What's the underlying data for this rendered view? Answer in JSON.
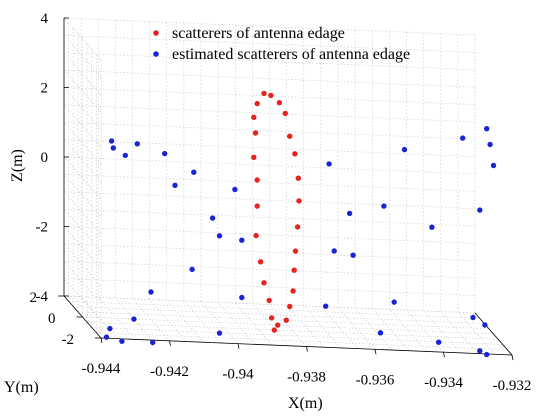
{
  "chart_data": {
    "type": "scatter",
    "projection": "3d",
    "xlabel": "X(m)",
    "ylabel": "Y(m)",
    "zlabel": "Z(m)",
    "xlim": [
      -0.944,
      -0.932
    ],
    "ylim": [
      -2,
      2
    ],
    "zlim": [
      -4,
      4
    ],
    "x_ticks": [
      "-0.944",
      "-0.942",
      "-0.94",
      "-0.938",
      "-0.936",
      "-0.934",
      "-0.932"
    ],
    "y_ticks": [
      "2",
      "0",
      "-2"
    ],
    "z_ticks": [
      "4",
      "2",
      "0",
      "-2",
      "-4"
    ],
    "grid": true,
    "legend_position": "top-center",
    "series": [
      {
        "name": "scatterers of antenna edage",
        "color": "#e8231f",
        "points": [
          [
            -0.9387,
            0,
            2.65
          ],
          [
            -0.9385,
            0,
            2.6
          ],
          [
            -0.93825,
            0,
            2.4
          ],
          [
            -0.9389,
            0,
            2.35
          ],
          [
            -0.93808,
            0,
            2.1
          ],
          [
            -0.939,
            0,
            1.95
          ],
          [
            -0.93895,
            0,
            1.5
          ],
          [
            -0.93795,
            0,
            1.45
          ],
          [
            -0.9378,
            0,
            0.95
          ],
          [
            -0.939,
            0,
            0.8
          ],
          [
            -0.9377,
            0,
            0.25
          ],
          [
            -0.9389,
            0,
            0.15
          ],
          [
            -0.93768,
            0,
            -0.4
          ],
          [
            -0.9389,
            0,
            -0.6
          ],
          [
            -0.93772,
            0,
            -1.15
          ],
          [
            -0.93893,
            0,
            -1.45
          ],
          [
            -0.93778,
            0,
            -1.85
          ],
          [
            -0.9388,
            0,
            -2.2
          ],
          [
            -0.93782,
            0,
            -2.4
          ],
          [
            -0.9387,
            0,
            -2.8
          ],
          [
            -0.93785,
            0,
            -3.0
          ],
          [
            -0.93855,
            0,
            -3.3
          ],
          [
            -0.93795,
            0,
            -3.45
          ],
          [
            -0.93848,
            0,
            -3.8
          ],
          [
            -0.93805,
            0,
            -3.85
          ],
          [
            -0.9383,
            0,
            -4.0
          ],
          [
            -0.9384,
            0,
            -4.15
          ]
        ]
      },
      {
        "name": "estimated scatterers of antenna edage",
        "color": "#1a24d6",
        "points": [
          [
            -0.94315,
            0,
            1.1
          ],
          [
            -0.9431,
            0,
            0.9
          ],
          [
            -0.9424,
            0,
            1.05
          ],
          [
            -0.94275,
            0,
            0.7
          ],
          [
            -0.9416,
            0,
            0.8
          ],
          [
            -0.94075,
            0,
            0.3
          ],
          [
            -0.93955,
            0,
            -0.15
          ],
          [
            -0.9413,
            0,
            -0.1
          ],
          [
            -0.9402,
            0,
            -1.0
          ],
          [
            -0.94,
            0,
            -1.5
          ],
          [
            -0.93935,
            0,
            -1.6
          ],
          [
            -0.9408,
            0,
            -2.5
          ],
          [
            -0.942,
            0,
            -3.2
          ],
          [
            -0.9425,
            0,
            -4.0
          ],
          [
            -0.9432,
            0,
            -4.3
          ],
          [
            -0.9433,
            0,
            -4.55
          ],
          [
            -0.94285,
            0,
            -4.65
          ],
          [
            -0.94195,
            0,
            -4.65
          ],
          [
            -0.94,
            0,
            -4.3
          ],
          [
            -0.93935,
            0,
            -3.25
          ],
          [
            -0.9368,
            0,
            0.7
          ],
          [
            -0.9362,
            0,
            -0.7
          ],
          [
            -0.93665,
            0,
            -1.8
          ],
          [
            -0.9361,
            0,
            -1.9
          ],
          [
            -0.9369,
            0,
            -3.4
          ],
          [
            -0.9352,
            0,
            -0.45
          ],
          [
            -0.9349,
            0,
            -3.2
          ],
          [
            -0.9346,
            0,
            1.2
          ],
          [
            -0.9353,
            0,
            -4.1
          ],
          [
            -0.9338,
            0,
            -1.0
          ],
          [
            -0.9329,
            0,
            1.6
          ],
          [
            -0.9322,
            0,
            1.9
          ],
          [
            -0.9321,
            0,
            1.45
          ],
          [
            -0.932,
            0,
            0.85
          ],
          [
            -0.9324,
            0,
            -0.45
          ],
          [
            -0.9326,
            0,
            -3.55
          ],
          [
            -0.93225,
            0,
            -3.75
          ],
          [
            -0.9336,
            0,
            -4.3
          ],
          [
            -0.9324,
            0,
            -4.5
          ],
          [
            -0.9322,
            0,
            -4.6
          ]
        ]
      }
    ]
  }
}
